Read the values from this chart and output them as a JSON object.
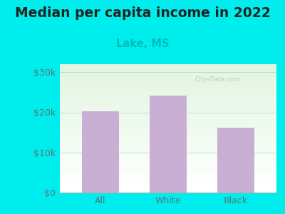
{
  "title": "Median per capita income in 2022",
  "subtitle": "Lake, MS",
  "categories": [
    "All",
    "White",
    "Black"
  ],
  "values": [
    20197,
    24100,
    16200
  ],
  "bar_color": "#c9afd4",
  "title_fontsize": 13.5,
  "subtitle_fontsize": 10.5,
  "subtitle_color": "#00bbbb",
  "tick_label_color": "#557777",
  "bg_color": "#00eded",
  "ylim": [
    0,
    32000
  ],
  "yticks": [
    0,
    10000,
    20000,
    30000
  ],
  "ytick_labels": [
    "$0",
    "$10k",
    "$20k",
    "$30k"
  ],
  "bar_width": 0.55,
  "watermark": "City-Data.com"
}
